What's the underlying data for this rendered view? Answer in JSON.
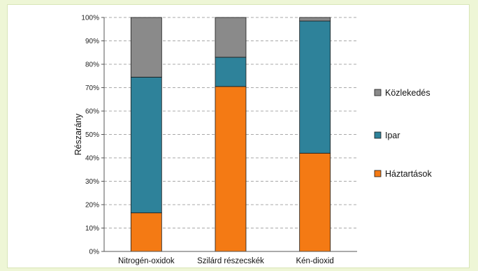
{
  "chart_data": {
    "type": "bar",
    "stacked": true,
    "percent": true,
    "categories": [
      "Nitrogén-oxidok",
      "Szilárd részecskék",
      "Kén-dioxid"
    ],
    "series": [
      {
        "name": "Háztartások",
        "color": "#f47a14",
        "values": [
          16.5,
          70.5,
          42
        ]
      },
      {
        "name": "Ipar",
        "color": "#2e829a",
        "values": [
          58,
          12.5,
          56.5
        ]
      },
      {
        "name": "Közlekedés",
        "color": "#8a8a8a",
        "values": [
          25.5,
          17,
          1.5
        ]
      }
    ],
    "legend_order": [
      "Közlekedés",
      "Ipar",
      "Háztartások"
    ],
    "ylabel": "Részarány",
    "xlabel": "",
    "title": "",
    "ylim": [
      0,
      100
    ],
    "yticks": [
      "0%",
      "10%",
      "20%",
      "30%",
      "40%",
      "50%",
      "60%",
      "70%",
      "80%",
      "90%",
      "100%"
    ],
    "grid": true,
    "legend_position": "right"
  }
}
